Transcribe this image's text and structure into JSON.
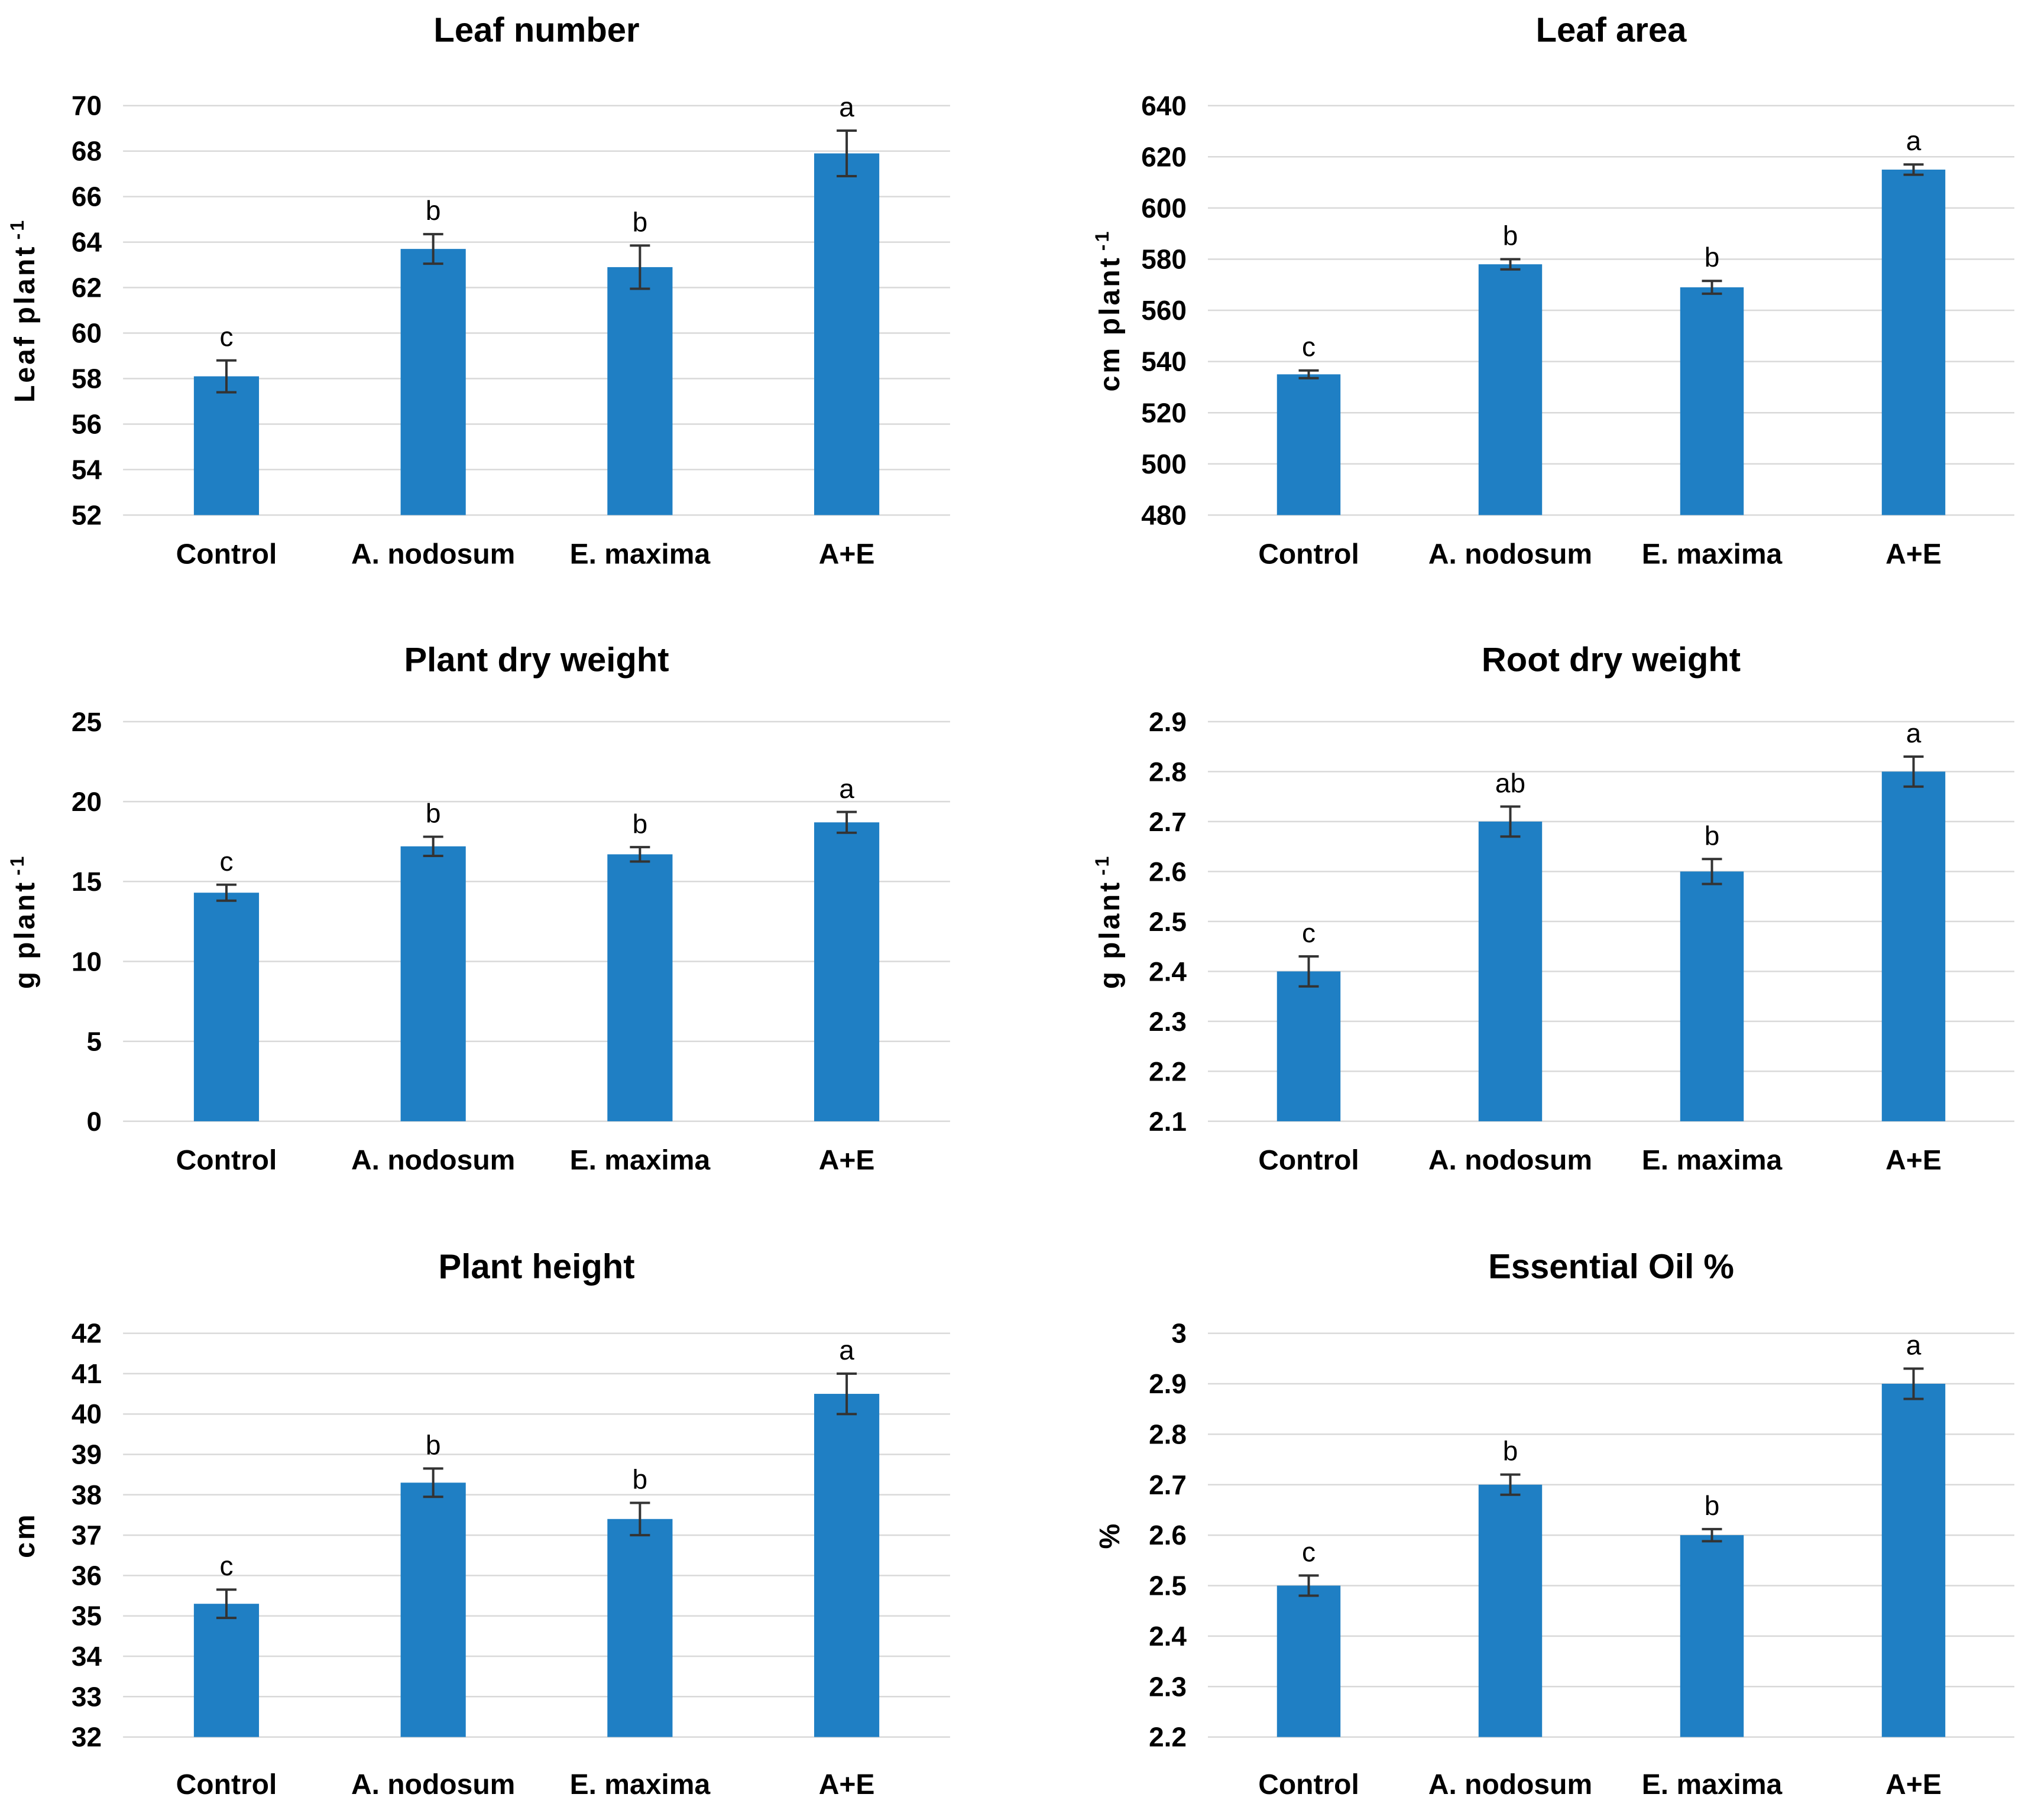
{
  "figure": {
    "background": "#ffffff",
    "panel_count": 6
  },
  "style": {
    "bar_color": "#1F7FC4",
    "grid_color": "#D9D9D9",
    "error_bar_color": "#333333",
    "text_color": "#000000",
    "letter_color": "#1a1a1a"
  },
  "chart_data": [
    {
      "type": "bar",
      "title": "Leaf number",
      "ylabel": "Leaf plant",
      "ylabel_sup": "-1",
      "xlabel": "",
      "ymin": 52,
      "ymax": 70,
      "ystep": 2,
      "tick_labels": [
        "52",
        "54",
        "56",
        "58",
        "60",
        "62",
        "64",
        "66",
        "68",
        "70"
      ],
      "categories": [
        "Control",
        "A. nodosum",
        "E. maxima",
        "A+E"
      ],
      "values": [
        58.1,
        63.7,
        62.9,
        67.9
      ],
      "errors": [
        0.7,
        0.65,
        0.95,
        1.0
      ],
      "letters": [
        "c",
        "b",
        "b",
        "a"
      ],
      "grid": true,
      "legend": "none"
    },
    {
      "type": "bar",
      "title": "Leaf area",
      "ylabel": "cm plant",
      "ylabel_sup": "-1",
      "xlabel": "",
      "ymin": 480,
      "ymax": 640,
      "ystep": 20,
      "tick_labels": [
        "480",
        "500",
        "520",
        "540",
        "560",
        "580",
        "600",
        "620",
        "640"
      ],
      "categories": [
        "Control",
        "A. nodosum",
        "E. maxima",
        "A+E"
      ],
      "values": [
        535,
        578,
        569,
        615
      ],
      "errors": [
        1.5,
        2,
        2.5,
        2
      ],
      "letters": [
        "c",
        "b",
        "b",
        "a"
      ],
      "grid": true,
      "legend": "none"
    },
    {
      "type": "bar",
      "title": "Plant dry weight",
      "ylabel": "g plant",
      "ylabel_sup": "-1",
      "xlabel": "",
      "ymin": 0,
      "ymax": 25,
      "ystep": 5,
      "tick_labels": [
        "0",
        "5",
        "10",
        "15",
        "20",
        "25"
      ],
      "categories": [
        "Control",
        "A. nodosum",
        "E. maxima",
        "A+E"
      ],
      "values": [
        14.3,
        17.2,
        16.7,
        18.7
      ],
      "errors": [
        0.5,
        0.6,
        0.45,
        0.65
      ],
      "letters": [
        "c",
        "b",
        "b",
        "a"
      ],
      "grid": true,
      "legend": "none"
    },
    {
      "type": "bar",
      "title": "Root dry weight",
      "ylabel": "g plant",
      "ylabel_sup": "-1",
      "xlabel": "",
      "ymin": 2.1,
      "ymax": 2.9,
      "ystep": 0.1,
      "tick_labels": [
        "2.1",
        "2.2",
        "2.3",
        "2.4",
        "2.5",
        "2.6",
        "2.7",
        "2.8",
        "2.9"
      ],
      "categories": [
        "Control",
        "A. nodosum",
        "E. maxima",
        "A+E"
      ],
      "values": [
        2.4,
        2.7,
        2.6,
        2.8
      ],
      "errors": [
        0.03,
        0.03,
        0.025,
        0.03
      ],
      "letters": [
        "c",
        "ab",
        "b",
        "a"
      ],
      "grid": true,
      "legend": "none"
    },
    {
      "type": "bar",
      "title": "Plant height",
      "ylabel": "cm",
      "ylabel_sup": "",
      "xlabel": "",
      "ymin": 32,
      "ymax": 42,
      "ystep": 1,
      "tick_labels": [
        "32",
        "33",
        "34",
        "35",
        "36",
        "37",
        "38",
        "39",
        "40",
        "41",
        "42"
      ],
      "categories": [
        "Control",
        "A. nodosum",
        "E. maxima",
        "A+E"
      ],
      "values": [
        35.3,
        38.3,
        37.4,
        40.5
      ],
      "errors": [
        0.35,
        0.35,
        0.4,
        0.5
      ],
      "letters": [
        "c",
        "b",
        "b",
        "a"
      ],
      "grid": true,
      "legend": "none"
    },
    {
      "type": "bar",
      "title": "Essential Oil %",
      "ylabel": "%",
      "ylabel_sup": "",
      "xlabel": "",
      "ymin": 2.2,
      "ymax": 3.0,
      "ystep": 0.1,
      "tick_labels": [
        "2.2",
        "2.3",
        "2.4",
        "2.5",
        "2.6",
        "2.7",
        "2.8",
        "2.9",
        "3"
      ],
      "categories": [
        "Control",
        "A. nodosum",
        "E. maxima",
        "A+E"
      ],
      "values": [
        2.5,
        2.7,
        2.6,
        2.9
      ],
      "errors": [
        0.02,
        0.02,
        0.012,
        0.03
      ],
      "letters": [
        "c",
        "b",
        "b",
        "a"
      ],
      "grid": true,
      "legend": "none"
    }
  ]
}
